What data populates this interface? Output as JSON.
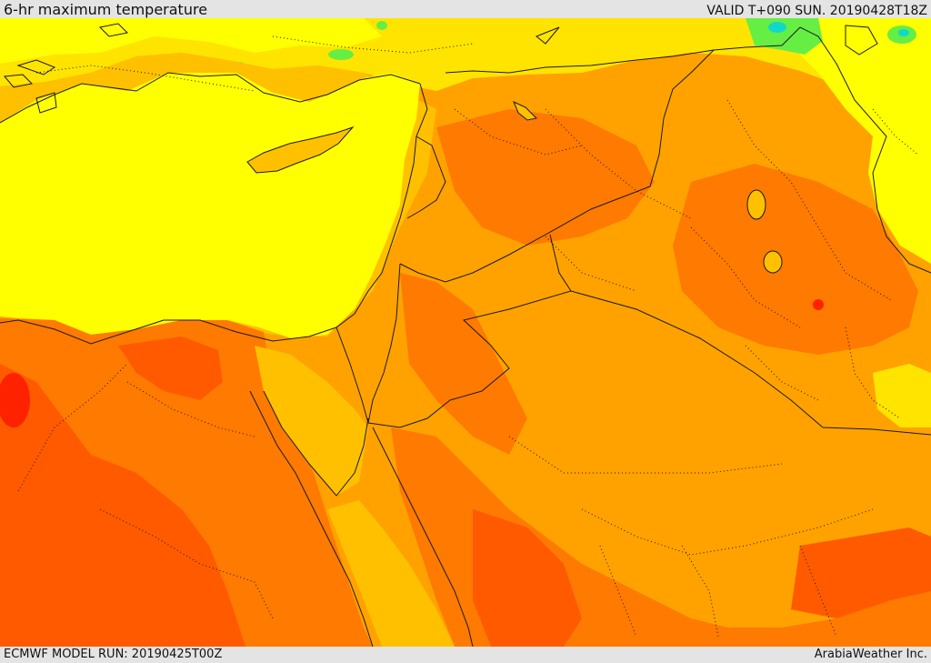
{
  "header": {
    "title": "6-hr maximum temperature",
    "valid": "VALID T+090 SUN. 20190428T18Z"
  },
  "footer": {
    "model_run": "ECMWF MODEL RUN: 20190425T00Z",
    "credit": "ArabiaWeather Inc."
  },
  "palette": {
    "cool_green": "#66ee44",
    "cool_cyan": "#11d8c8",
    "light_yellow": "#ffff00",
    "yellow": "#ffe400",
    "gold": "#ffc000",
    "orange": "#ffa200",
    "dark_orange": "#ff7a00",
    "red_orange": "#ff5a00",
    "red": "#ff2200",
    "border": "#1a1a1a"
  }
}
